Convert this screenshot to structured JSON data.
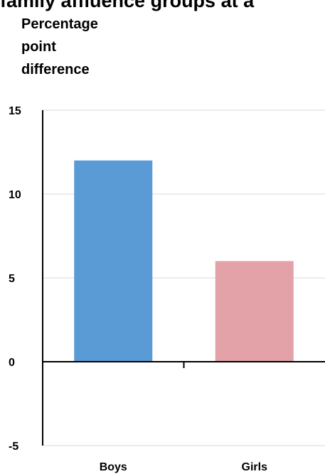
{
  "header": {
    "clipped_title": "family affluence groups at a"
  },
  "chart_data": {
    "type": "bar",
    "ylabel_lines": [
      "Percentage",
      "point",
      "difference"
    ],
    "categories": [
      "Boys",
      "Girls"
    ],
    "values": [
      12,
      6
    ],
    "colors": [
      "#5b9bd5",
      "#e3a1a8"
    ],
    "ylim": [
      -5,
      15
    ],
    "yticks": [
      15,
      10,
      5,
      0,
      -5
    ],
    "grid": true
  }
}
